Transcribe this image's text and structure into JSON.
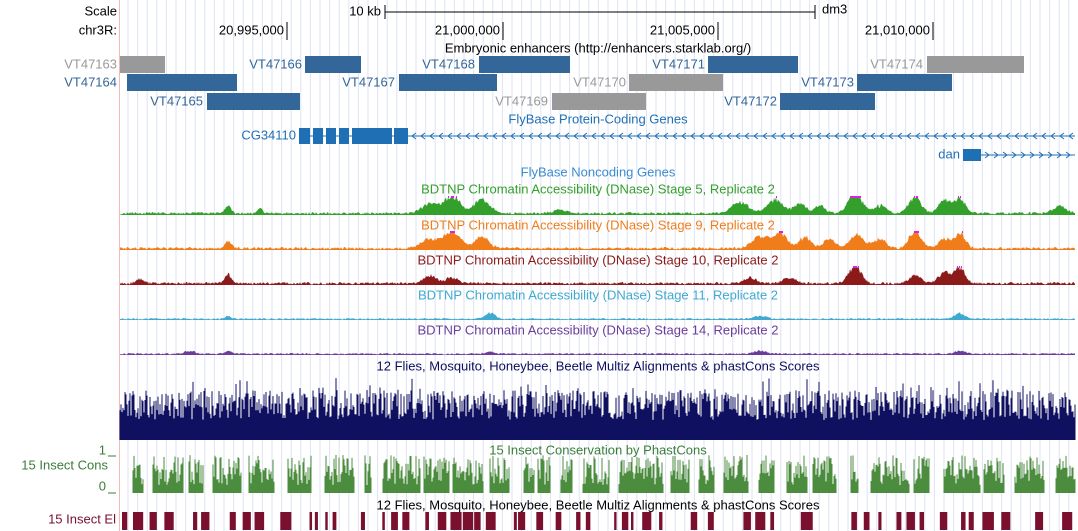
{
  "header": {
    "scale_label": "Scale",
    "scale_bar": "10 kb",
    "assembly": "dm3",
    "chrom_label": "chr3R:",
    "positions": [
      "20,995,000",
      "21,000,000",
      "21,005,000",
      "21,010,000"
    ]
  },
  "enhancers": {
    "title": "Embryonic enhancers (http://enhancers.starklab.org/)",
    "items": [
      {
        "label": "VT47163",
        "color": "#999999"
      },
      {
        "label": "VT47164",
        "color": "#336699"
      },
      {
        "label": "VT47165",
        "color": "#336699"
      },
      {
        "label": "VT47166",
        "color": "#336699"
      },
      {
        "label": "VT47167",
        "color": "#336699"
      },
      {
        "label": "VT47168",
        "color": "#336699"
      },
      {
        "label": "VT47169",
        "color": "#999999"
      },
      {
        "label": "VT47170",
        "color": "#999999"
      },
      {
        "label": "VT47171",
        "color": "#336699"
      },
      {
        "label": "VT47172",
        "color": "#336699"
      },
      {
        "label": "VT47173",
        "color": "#336699"
      },
      {
        "label": "VT47174",
        "color": "#999999"
      }
    ]
  },
  "genes": {
    "protein_title": "FlyBase Protein-Coding Genes",
    "gene1": "CG34110",
    "gene2": "dan",
    "noncoding_title": "FlyBase Noncoding Genes"
  },
  "dnase_tracks": [
    {
      "title": "BDTNP Chromatin Accessibility (DNase) Stage 5, Replicate 2",
      "color": "#33a02c"
    },
    {
      "title": "BDTNP Chromatin Accessibility (DNase) Stage 9, Replicate 2",
      "color": "#f07d1a"
    },
    {
      "title": "BDTNP Chromatin Accessibility (DNase) Stage 10, Replicate 2",
      "color": "#8b1a1a"
    },
    {
      "title": "BDTNP Chromatin Accessibility (DNase) Stage 11, Replicate 2",
      "color": "#3fa9d0"
    },
    {
      "title": "BDTNP Chromatin Accessibility (DNase) Stage 14, Replicate 2",
      "color": "#6a3d9a"
    }
  ],
  "multiz": {
    "title": "12 Flies, Mosquito, Honeybee, Beetle Multiz Alignments & phastCons Scores"
  },
  "phastcons": {
    "title": "15 Insect Conservation by PhastCons",
    "side_label": "15 Insect Cons",
    "max": "1",
    "min": "0"
  },
  "elements": {
    "title": "12 Flies, Mosquito, Honeybee, Beetle Multiz Alignments & phastCons Scores",
    "side_label": "15 Insect El"
  }
}
